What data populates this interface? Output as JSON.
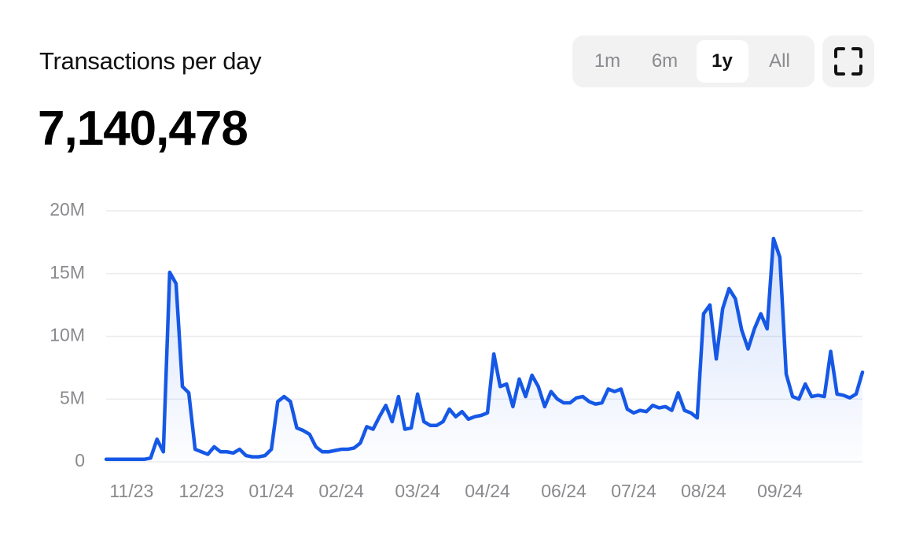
{
  "header": {
    "title": "Transactions per day",
    "value": "7,140,478"
  },
  "controls": {
    "ranges": [
      "1m",
      "6m",
      "1y",
      "All"
    ],
    "active": "1y"
  },
  "chart_data": {
    "type": "line",
    "color": "#1658e6",
    "grid": true,
    "ylim": [
      0,
      20000000
    ],
    "yticks": [
      0,
      {
        "value": 5000000,
        "label": "5M"
      },
      {
        "value": 10000000,
        "label": "10M"
      },
      {
        "value": 15000000,
        "label": "15M"
      },
      {
        "value": 20000000,
        "label": "20M"
      }
    ],
    "categories": [
      null,
      null,
      null,
      null,
      "11/23",
      null,
      null,
      null,
      null,
      null,
      null,
      null,
      null,
      null,
      null,
      "12/23",
      null,
      null,
      null,
      null,
      null,
      null,
      null,
      null,
      null,
      null,
      "01/24",
      null,
      null,
      null,
      null,
      null,
      null,
      null,
      null,
      null,
      null,
      "02/24",
      null,
      null,
      null,
      null,
      null,
      null,
      null,
      null,
      null,
      null,
      null,
      "03/24",
      null,
      null,
      null,
      null,
      null,
      null,
      null,
      null,
      null,
      null,
      "04/24",
      null,
      null,
      null,
      null,
      null,
      null,
      null,
      null,
      null,
      null,
      null,
      "06/24",
      null,
      null,
      null,
      null,
      null,
      null,
      null,
      null,
      null,
      null,
      "07/24",
      null,
      null,
      null,
      null,
      null,
      null,
      null,
      null,
      null,
      null,
      "08/24",
      null,
      null,
      null,
      null,
      null,
      null,
      null,
      null,
      null,
      null,
      null,
      "09/24",
      null,
      null,
      null,
      null,
      null,
      null,
      null,
      null,
      null,
      null,
      null,
      null,
      null
    ],
    "values": [
      200000,
      200000,
      200000,
      200000,
      200000,
      200000,
      200000,
      300000,
      1800000,
      800000,
      15100000,
      14200000,
      6000000,
      5500000,
      1000000,
      800000,
      600000,
      1200000,
      800000,
      800000,
      700000,
      1000000,
      500000,
      400000,
      400000,
      500000,
      1000000,
      4800000,
      5200000,
      4800000,
      2700000,
      2500000,
      2200000,
      1200000,
      800000,
      800000,
      900000,
      1000000,
      1000000,
      1100000,
      1500000,
      2800000,
      2600000,
      3600000,
      4500000,
      3200000,
      5200000,
      2600000,
      2700000,
      5400000,
      3200000,
      2900000,
      2900000,
      3200000,
      4200000,
      3600000,
      4000000,
      3400000,
      3600000,
      3700000,
      3900000,
      8600000,
      6000000,
      6200000,
      4400000,
      6600000,
      5200000,
      6900000,
      6000000,
      4400000,
      5600000,
      5000000,
      4700000,
      4700000,
      5100000,
      5200000,
      4800000,
      4600000,
      4700000,
      5800000,
      5600000,
      5800000,
      4200000,
      3900000,
      4100000,
      4000000,
      4500000,
      4300000,
      4400000,
      4100000,
      5500000,
      4100000,
      3900000,
      3500000,
      11800000,
      12500000,
      8200000,
      12200000,
      13800000,
      13000000,
      10500000,
      9000000,
      10600000,
      11800000,
      10600000,
      17800000,
      16300000,
      7000000,
      5200000,
      5000000,
      6200000,
      5200000,
      5300000,
      5200000,
      8800000,
      5400000,
      5300000,
      5100000,
      5400000,
      7140478
    ]
  }
}
